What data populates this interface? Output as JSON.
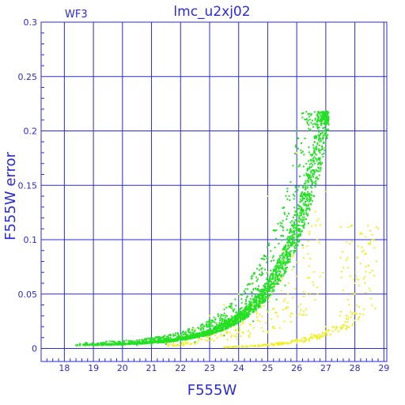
{
  "chart_data": {
    "type": "scatter",
    "title": "lmc_u2xj02",
    "panel_label": "WF3",
    "xlabel": "F555W",
    "ylabel": "F555W error",
    "xlim": [
      17.2,
      29.1
    ],
    "ylim": [
      -0.012,
      0.3
    ],
    "xticks": [
      18,
      19,
      20,
      21,
      22,
      23,
      24,
      25,
      26,
      27,
      28,
      29
    ],
    "yticks": [
      0,
      0.05,
      0.1,
      0.15,
      0.2,
      0.25,
      0.3
    ],
    "ytick_labels": [
      "0",
      "0.05",
      "0.1",
      "0.15",
      "0.2",
      "0.25",
      "0.3"
    ],
    "grid": true,
    "colors": {
      "axis": "#2a2ad8",
      "grid": "#2a2ad8",
      "series_green": "#22e022",
      "series_yellow": "#f0f020"
    },
    "series": [
      {
        "color": "green",
        "points": [
          [
            18.4,
            0.003
          ],
          [
            18.7,
            0.003
          ],
          [
            19.0,
            0.003
          ],
          [
            19.3,
            0.003
          ],
          [
            19.6,
            0.003
          ],
          [
            20.0,
            0.003
          ],
          [
            20.5,
            0.003
          ],
          [
            21.0,
            0.003
          ],
          [
            21.5,
            0.004
          ],
          [
            22.0,
            0.005
          ],
          [
            22.5,
            0.006
          ],
          [
            23.0,
            0.009
          ],
          [
            23.5,
            0.012
          ],
          [
            24.0,
            0.018
          ],
          [
            24.5,
            0.025
          ],
          [
            25.0,
            0.035
          ],
          [
            25.3,
            0.045
          ],
          [
            25.6,
            0.058
          ],
          [
            25.9,
            0.075
          ],
          [
            26.2,
            0.095
          ],
          [
            26.4,
            0.115
          ],
          [
            26.6,
            0.14
          ],
          [
            26.8,
            0.17
          ],
          [
            26.95,
            0.2
          ],
          [
            27.05,
            0.218
          ],
          [
            22.5,
            0.012
          ],
          [
            23.0,
            0.02
          ],
          [
            23.5,
            0.025
          ],
          [
            24.0,
            0.035
          ],
          [
            24.5,
            0.045
          ],
          [
            25.0,
            0.06
          ],
          [
            25.5,
            0.08
          ],
          [
            26.0,
            0.11
          ],
          [
            26.3,
            0.135
          ],
          [
            26.6,
            0.16
          ],
          [
            26.8,
            0.19
          ],
          [
            27.0,
            0.21
          ],
          [
            24.8,
            0.07
          ],
          [
            25.2,
            0.085
          ],
          [
            26.0,
            0.2
          ]
        ]
      },
      {
        "color": "yellow",
        "points": [
          [
            21.5,
            0.006
          ],
          [
            22.0,
            0.012
          ],
          [
            22.5,
            0.018
          ],
          [
            23.0,
            0.03
          ],
          [
            23.5,
            0.04
          ],
          [
            24.0,
            0.05
          ],
          [
            24.5,
            0.06
          ],
          [
            25.0,
            0.07
          ],
          [
            25.5,
            0.09
          ],
          [
            26.0,
            0.11
          ],
          [
            24.0,
            0.002
          ],
          [
            25.0,
            0.003
          ],
          [
            25.5,
            0.005
          ],
          [
            26.0,
            0.008
          ],
          [
            26.5,
            0.013
          ],
          [
            27.0,
            0.02
          ],
          [
            27.5,
            0.03
          ],
          [
            27.8,
            0.04
          ],
          [
            28.0,
            0.05
          ],
          [
            28.0,
            0.06
          ],
          [
            28.3,
            0.09
          ],
          [
            28.6,
            0.1
          ],
          [
            28.8,
            0.11
          ],
          [
            25.0,
            0.14
          ],
          [
            26.0,
            0.18
          ]
        ]
      }
    ]
  }
}
